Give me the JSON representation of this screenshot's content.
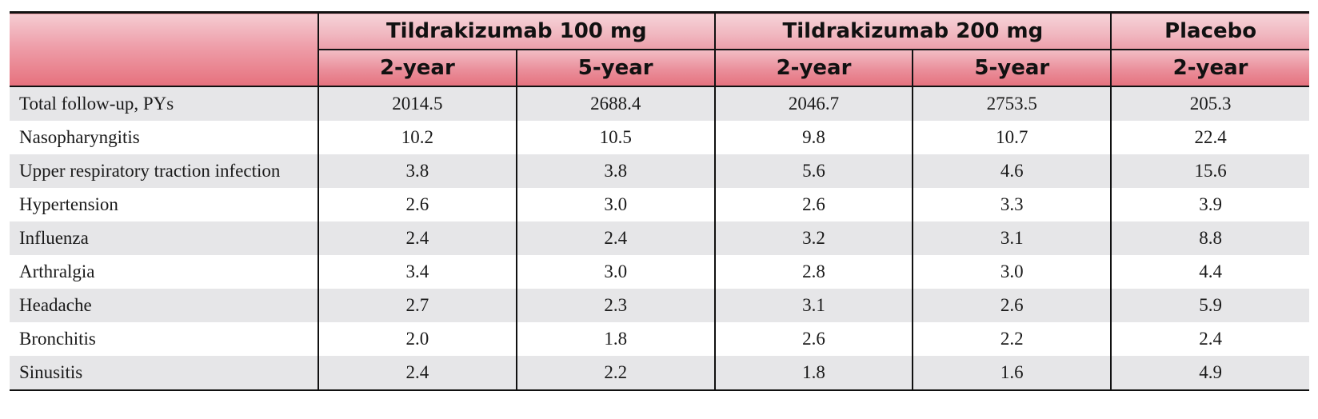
{
  "header": {
    "groups": [
      {
        "label": "Tildrakizumab 100 mg"
      },
      {
        "label": "Tildrakizumab 200 mg"
      },
      {
        "label": "Placebo"
      }
    ],
    "periods": [
      "2-year",
      "5-year",
      "2-year",
      "5-year",
      "2-year"
    ]
  },
  "rows": [
    {
      "label": "Total follow-up, PYs",
      "values": [
        "2014.5",
        "2688.4",
        "2046.7",
        "2753.5",
        "205.3"
      ]
    },
    {
      "label": "Nasopharyngitis",
      "values": [
        "10.2",
        "10.5",
        "9.8",
        "10.7",
        "22.4"
      ]
    },
    {
      "label": "Upper respiratory traction infection",
      "values": [
        "3.8",
        "3.8",
        "5.6",
        "4.6",
        "15.6"
      ]
    },
    {
      "label": "Hypertension",
      "values": [
        "2.6",
        "3.0",
        "2.6",
        "3.3",
        "3.9"
      ]
    },
    {
      "label": "Influenza",
      "values": [
        "2.4",
        "2.4",
        "3.2",
        "3.1",
        "8.8"
      ]
    },
    {
      "label": "Arthralgia",
      "values": [
        "3.4",
        "3.0",
        "2.8",
        "3.0",
        "4.4"
      ]
    },
    {
      "label": "Headache",
      "values": [
        "2.7",
        "2.3",
        "3.1",
        "2.6",
        "5.9"
      ]
    },
    {
      "label": "Bronchitis",
      "values": [
        "2.0",
        "1.8",
        "2.6",
        "2.2",
        "2.4"
      ]
    },
    {
      "label": "Sinusitis",
      "values": [
        "2.4",
        "2.2",
        "1.8",
        "1.6",
        "4.9"
      ]
    }
  ],
  "colors": {
    "header_light": "#f6d3d8",
    "header_dark": "#e5737f",
    "row_stripe": "#e6e6e8",
    "rule": "#111111"
  }
}
